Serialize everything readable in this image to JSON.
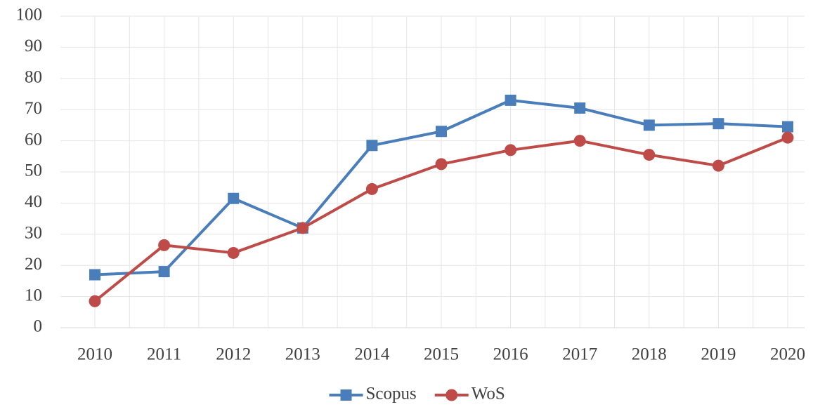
{
  "chart_data": {
    "type": "line",
    "categories": [
      "2010",
      "2011",
      "2012",
      "2013",
      "2014",
      "2015",
      "2016",
      "2017",
      "2018",
      "2019",
      "2020"
    ],
    "series": [
      {
        "name": "Scopus",
        "color": "#4a7ebb",
        "marker": "square",
        "values": [
          17,
          18,
          41.5,
          32,
          58.5,
          63,
          73,
          70.5,
          65,
          65.5,
          64.5
        ]
      },
      {
        "name": "WoS",
        "color": "#be4b48",
        "marker": "circle",
        "values": [
          8.5,
          26.5,
          24,
          32,
          44.5,
          52.5,
          57,
          60,
          55.5,
          52,
          61
        ]
      }
    ],
    "ylim": [
      0,
      100
    ],
    "yticks": [
      0,
      10,
      20,
      30,
      40,
      50,
      60,
      70,
      80,
      90,
      100
    ],
    "grid": true,
    "legend": "bottom"
  }
}
